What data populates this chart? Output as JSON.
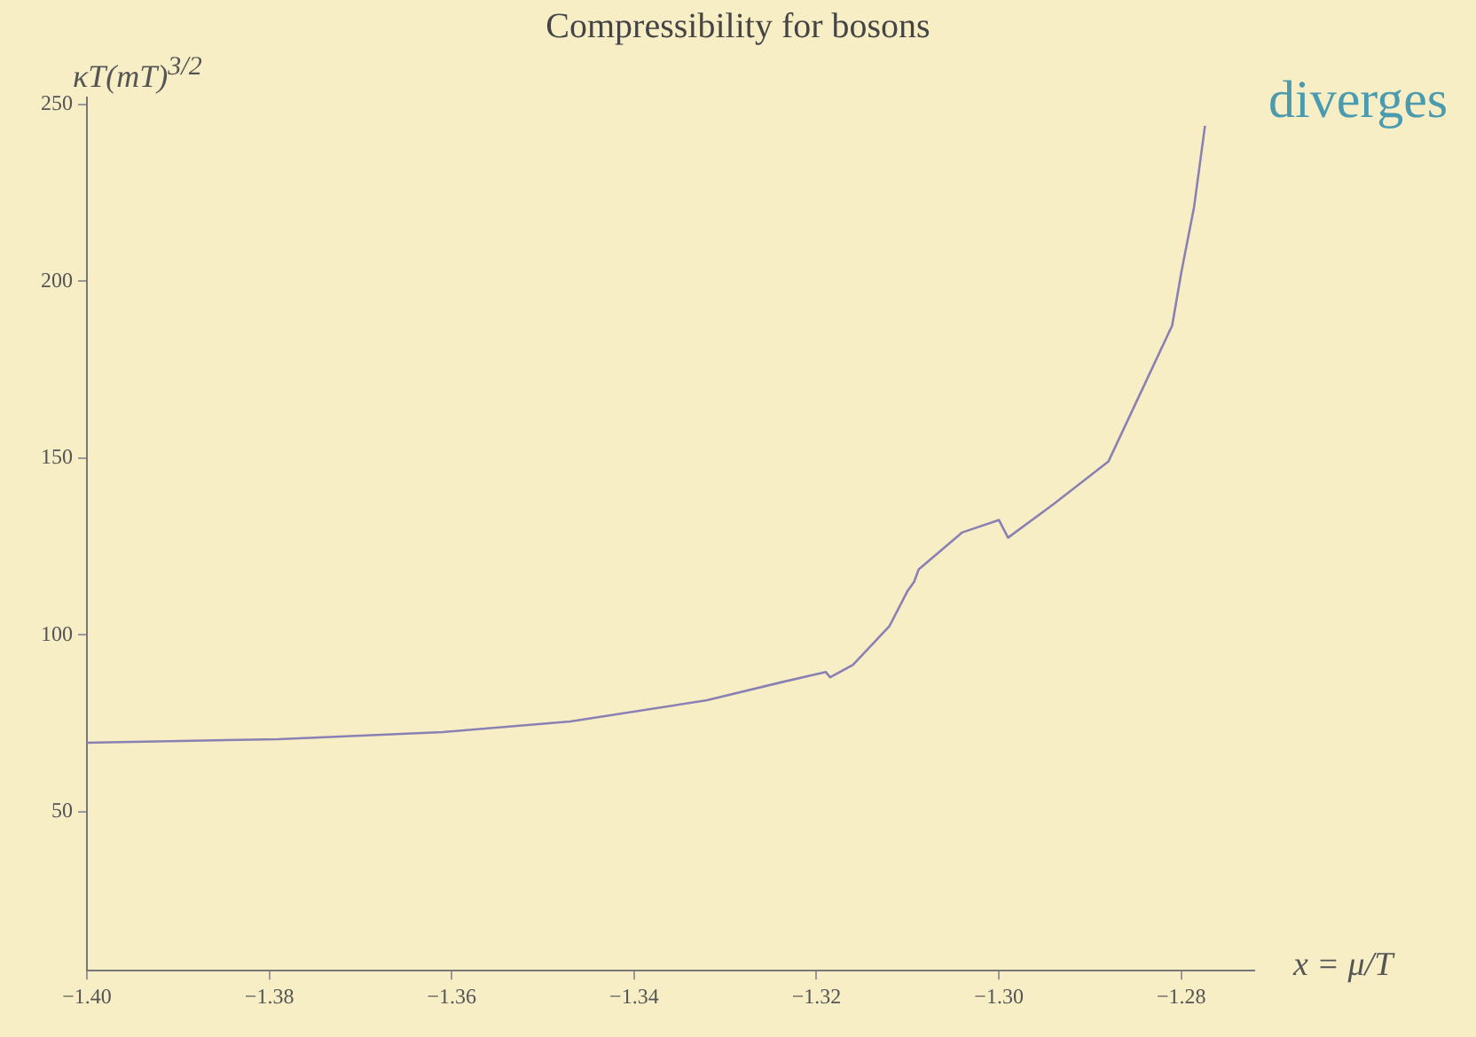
{
  "chart_data": {
    "type": "line",
    "title": "Compressibility for bosons",
    "xlabel": "x = μ/T",
    "ylabel": "κT(mT)$^{3/2}$",
    "annotations": [
      "diverges"
    ],
    "x": [
      -1.4,
      -1.379,
      -1.361,
      -1.347,
      -1.332,
      -1.324,
      -1.319,
      -1.3185,
      -1.316,
      -1.312,
      -1.31,
      -1.3093,
      -1.3088,
      -1.304,
      -1.3,
      -1.299,
      -1.294,
      -1.288,
      -1.284,
      -1.281,
      -1.28,
      -1.2786,
      -1.2774
    ],
    "series": [
      {
        "color": "#8a80b4",
        "values": [
          69.5,
          70.5,
          72.5,
          75.5,
          81.5,
          86.5,
          89.5,
          88,
          91.5,
          102.5,
          112.5,
          115,
          118.5,
          129,
          132.5,
          127.5,
          137,
          149,
          171,
          187.5,
          202.5,
          221,
          244
        ]
      }
    ],
    "xlim": [
      -1.4,
      -1.272
    ],
    "ylim": [
      5,
      252
    ],
    "xticks": [
      {
        "value": -1.4,
        "label": "−1.40"
      },
      {
        "value": -1.38,
        "label": "−1.38"
      },
      {
        "value": -1.36,
        "label": "−1.36"
      },
      {
        "value": -1.34,
        "label": "−1.34"
      },
      {
        "value": -1.32,
        "label": "−1.32"
      },
      {
        "value": -1.3,
        "label": "−1.30"
      },
      {
        "value": -1.28,
        "label": "−1.28"
      }
    ],
    "yticks": [
      50,
      100,
      150,
      200,
      250
    ],
    "grid": false,
    "legend": false,
    "marker": "none",
    "line_style": "solid"
  }
}
